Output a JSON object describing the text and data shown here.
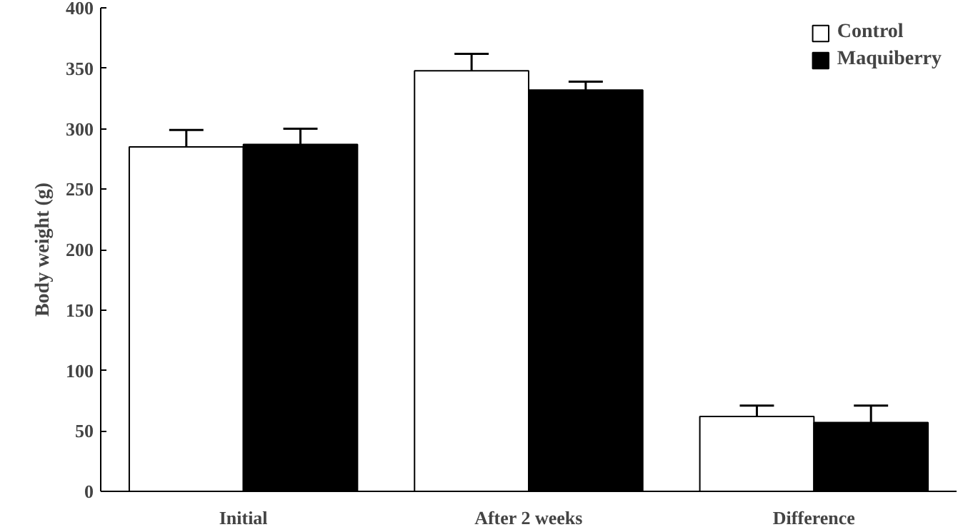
{
  "chart_data": {
    "type": "bar",
    "ylabel": "Body weight (g)",
    "categories": [
      "Initial",
      "After 2 weeks",
      "Difference"
    ],
    "series": [
      {
        "name": "Control",
        "color": "#ffffff",
        "values": [
          285,
          348,
          62
        ],
        "errors": [
          [
            285,
            299
          ],
          [
            348,
            362
          ],
          [
            62,
            71
          ]
        ]
      },
      {
        "name": "Maquiberry",
        "color": "#000000",
        "values": [
          287,
          332,
          57
        ],
        "errors": [
          [
            287,
            300
          ],
          [
            332,
            339
          ],
          [
            57,
            71
          ]
        ]
      }
    ],
    "ylim": [
      0,
      400
    ],
    "yticks": [
      0,
      50,
      100,
      150,
      200,
      250,
      300,
      350,
      400
    ],
    "grid": false,
    "legend": "top right"
  }
}
